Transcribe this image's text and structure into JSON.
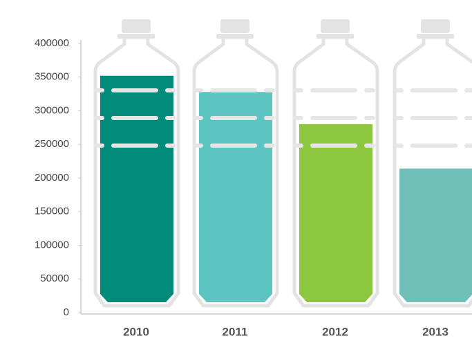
{
  "chart_data": {
    "type": "bar",
    "categories": [
      "2010",
      "2011",
      "2012",
      "2013"
    ],
    "values": [
      352000,
      328000,
      280000,
      214000
    ],
    "colors": [
      "#008b7a",
      "#5cc4c1",
      "#8dc63f",
      "#70bfb8"
    ],
    "ylim": [
      0,
      400000
    ],
    "yticks": [
      0,
      50000,
      100000,
      150000,
      200000,
      250000,
      300000,
      350000,
      400000
    ]
  }
}
